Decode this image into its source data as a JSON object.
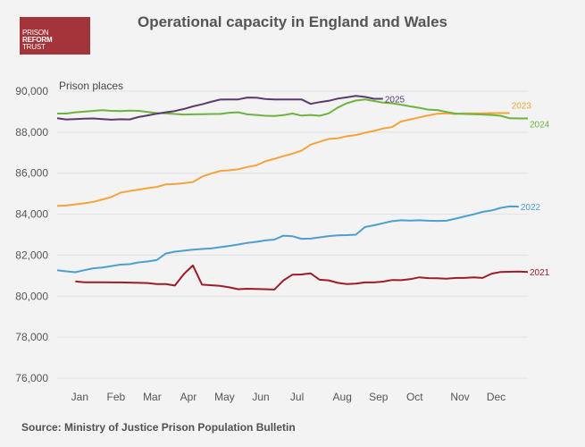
{
  "logo": {
    "line1": "PRISON",
    "line2": "REFORM",
    "line3": "TRUST"
  },
  "source": "Source: Ministry of Justice Prison Population Bulletin",
  "colors": {
    "2021": "#9e1b2a",
    "2022": "#4d9fd0",
    "2023": "#f4a43d",
    "2024": "#6cb33f",
    "2025": "#5b3a6e",
    "background": "#f3f3f3",
    "grid": "#e2e2e2"
  },
  "chart_data": {
    "type": "line",
    "title": "Operational capacity in England and Wales",
    "ylabel": "Prison places",
    "xlabel": "",
    "ylim": [
      76000,
      90000
    ],
    "yticks": [
      76000,
      78000,
      80000,
      82000,
      84000,
      86000,
      88000,
      90000
    ],
    "ytick_labels": [
      "76,000",
      "78,000",
      "80,000",
      "82,000",
      "84,000",
      "86,000",
      "88,000",
      "90,000"
    ],
    "xlim": [
      0,
      52
    ],
    "x_unit": "week of year",
    "month_ticks": [
      {
        "label": "Jan",
        "x": 2.5
      },
      {
        "label": "Feb",
        "x": 6.5
      },
      {
        "label": "Mar",
        "x": 10.5
      },
      {
        "label": "Apr",
        "x": 14.5
      },
      {
        "label": "May",
        "x": 18.5
      },
      {
        "label": "Jun",
        "x": 22.5
      },
      {
        "label": "Jul",
        "x": 26.5
      },
      {
        "label": "Aug",
        "x": 31.5
      },
      {
        "label": "Sep",
        "x": 35.5
      },
      {
        "label": "Oct",
        "x": 39.5
      },
      {
        "label": "Nov",
        "x": 44.5
      },
      {
        "label": "Dec",
        "x": 48.5
      }
    ],
    "grid": true,
    "legend": "inline labels at line ends",
    "series": [
      {
        "name": "2021",
        "x": [
          2,
          3,
          5,
          7,
          9,
          10,
          11,
          12,
          13,
          14,
          15,
          16,
          18,
          19,
          20,
          21,
          22,
          23,
          24,
          25,
          26,
          27,
          28,
          29,
          30,
          31,
          32,
          33,
          34,
          35,
          36,
          37,
          38,
          39,
          40,
          41,
          42,
          43,
          44,
          45,
          46,
          47,
          48,
          49,
          50,
          51,
          52
        ],
        "values": [
          80720,
          80680,
          80680,
          80670,
          80650,
          80640,
          80590,
          80590,
          80520,
          81080,
          81500,
          80560,
          80500,
          80430,
          80340,
          80360,
          80350,
          80340,
          80320,
          80770,
          81050,
          81060,
          81110,
          80800,
          80770,
          80650,
          80590,
          80610,
          80670,
          80670,
          80710,
          80790,
          80780,
          80830,
          80920,
          80880,
          80870,
          80850,
          80890,
          80890,
          80920,
          80890,
          81100,
          81180,
          81190,
          81200,
          81180
        ]
      },
      {
        "name": "2022",
        "x": [
          0,
          1,
          2,
          3,
          4,
          5,
          6,
          7,
          8,
          9,
          10,
          11,
          12,
          13,
          14,
          15,
          16,
          17,
          18,
          19,
          20,
          21,
          22,
          23,
          24,
          25,
          26,
          27,
          28,
          29,
          30,
          31,
          32,
          33,
          34,
          35,
          36,
          37,
          38,
          39,
          40,
          41,
          42,
          43,
          44,
          45,
          46,
          47,
          48,
          49,
          50,
          51
        ],
        "values": [
          81270,
          81210,
          81170,
          81270,
          81360,
          81400,
          81470,
          81540,
          81560,
          81650,
          81690,
          81760,
          82080,
          82170,
          82220,
          82270,
          82300,
          82330,
          82390,
          82450,
          82520,
          82600,
          82650,
          82720,
          82760,
          82950,
          82920,
          82800,
          82810,
          82870,
          82930,
          82970,
          82980,
          83000,
          83370,
          83460,
          83560,
          83660,
          83700,
          83690,
          83700,
          83680,
          83670,
          83680,
          83780,
          83890,
          83990,
          84110,
          84180,
          84310,
          84380,
          84370
        ]
      },
      {
        "name": "2023",
        "x": [
          0,
          1,
          2,
          3,
          4,
          5,
          6,
          7,
          8,
          9,
          10,
          11,
          12,
          13,
          14,
          15,
          16,
          17,
          18,
          19,
          20,
          21,
          22,
          23,
          24,
          25,
          26,
          27,
          28,
          29,
          30,
          31,
          32,
          33,
          34,
          35,
          36,
          37,
          38,
          39,
          40,
          41,
          42,
          43,
          44,
          45,
          46,
          47,
          48,
          49,
          50
        ],
        "values": [
          84400,
          84420,
          84480,
          84530,
          84600,
          84720,
          84840,
          85050,
          85130,
          85200,
          85270,
          85330,
          85450,
          85470,
          85510,
          85570,
          85830,
          85980,
          86110,
          86140,
          86190,
          86300,
          86380,
          86580,
          86700,
          86830,
          86950,
          87100,
          87390,
          87530,
          87670,
          87700,
          87800,
          87860,
          87970,
          88060,
          88180,
          88250,
          88520,
          88620,
          88720,
          88820,
          88900,
          88920,
          88890,
          88920,
          88920,
          88920,
          88930,
          88930,
          88930
        ]
      },
      {
        "name": "2024",
        "x": [
          0,
          1,
          2,
          3,
          4,
          5,
          6,
          7,
          8,
          9,
          10,
          11,
          12,
          13,
          14,
          15,
          16,
          17,
          18,
          19,
          20,
          21,
          22,
          23,
          24,
          25,
          26,
          27,
          28,
          29,
          30,
          31,
          32,
          33,
          34,
          35,
          36,
          37,
          38,
          39,
          40,
          41,
          42,
          43,
          44,
          45,
          46,
          47,
          48,
          49,
          50,
          51,
          52
        ],
        "values": [
          88910,
          88910,
          88970,
          89000,
          89040,
          89070,
          89040,
          89030,
          89050,
          89040,
          88990,
          88930,
          88920,
          88890,
          88860,
          88870,
          88880,
          88890,
          88890,
          88950,
          88970,
          88870,
          88840,
          88800,
          88790,
          88830,
          88910,
          88810,
          88840,
          88800,
          88920,
          89200,
          89410,
          89540,
          89600,
          89520,
          89440,
          89410,
          89340,
          89260,
          89190,
          89100,
          89080,
          88990,
          88910,
          88890,
          88880,
          88860,
          88840,
          88800,
          88680,
          88670,
          88670
        ]
      },
      {
        "name": "2025",
        "x": [
          0,
          1,
          2,
          3,
          4,
          5,
          6,
          7,
          8,
          9,
          10,
          11,
          12,
          13,
          14,
          15,
          16,
          17,
          18,
          19,
          20,
          21,
          22,
          23,
          24,
          25,
          26,
          27,
          28,
          29,
          30,
          31,
          32,
          33,
          34,
          35,
          36
        ],
        "values": [
          88680,
          88620,
          88640,
          88660,
          88670,
          88640,
          88610,
          88630,
          88620,
          88740,
          88820,
          88900,
          88970,
          89030,
          89130,
          89260,
          89360,
          89480,
          89590,
          89600,
          89600,
          89690,
          89680,
          89620,
          89600,
          89600,
          89600,
          89600,
          89380,
          89470,
          89530,
          89640,
          89700,
          89770,
          89720,
          89630,
          89630
        ]
      }
    ]
  }
}
